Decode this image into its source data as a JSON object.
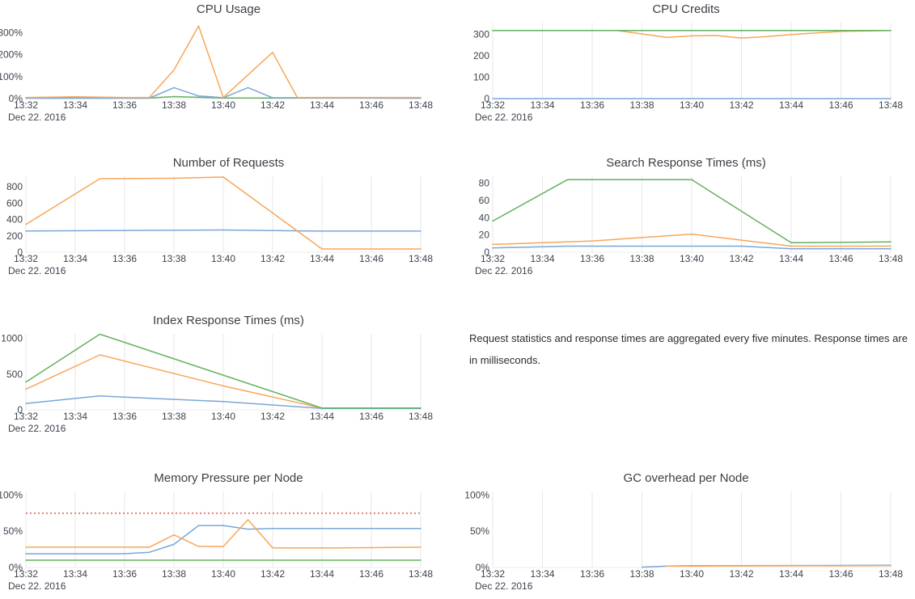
{
  "page": {
    "note": "Request statistics and response times are aggregated every five minutes. Response times are in milliseconds.",
    "background": "#ffffff"
  },
  "x_axis": {
    "tick_labels": [
      "13:32",
      "13:34",
      "13:36",
      "13:38",
      "13:40",
      "13:42",
      "13:44",
      "13:46",
      "13:48"
    ],
    "date_label": "Dec 22. 2016",
    "minutes_domain": [
      0,
      16
    ]
  },
  "palette": {
    "blue": "#7aa6d8",
    "orange": "#f7a658",
    "green": "#62b25e",
    "red": "#ec7d78",
    "grid": "#e7e7e7",
    "zero": "#ececec",
    "title_text": "#3d3f46",
    "tick_text": "#3f434e"
  },
  "chart_data": [
    {
      "id": "cpu-usage",
      "type": "line",
      "title": "CPU Usage",
      "grid": false,
      "ylim": [
        0,
        345
      ],
      "y_ticks": [
        {
          "v": 0,
          "label": "0%"
        },
        {
          "v": 100,
          "label": "100%"
        },
        {
          "v": 200,
          "label": "200%"
        },
        {
          "v": 300,
          "label": "300%"
        }
      ],
      "series": [
        {
          "name": "series-green",
          "color": "green",
          "x": [
            0,
            5,
            6,
            7,
            8,
            16
          ],
          "y": [
            3,
            3,
            9,
            6,
            3,
            3
          ]
        },
        {
          "name": "series-blue",
          "color": "blue",
          "x": [
            0,
            5,
            6,
            7,
            8,
            9,
            10,
            16
          ],
          "y": [
            2,
            2,
            50,
            12,
            4,
            50,
            4,
            2
          ]
        },
        {
          "name": "series-orange",
          "color": "orange",
          "x": [
            0,
            2,
            4,
            5,
            6,
            7,
            8,
            10,
            11,
            16
          ],
          "y": [
            5,
            8,
            5,
            5,
            130,
            330,
            5,
            210,
            5,
            5
          ]
        }
      ]
    },
    {
      "id": "cpu-credits",
      "type": "line",
      "title": "CPU Credits",
      "grid": true,
      "ylim": [
        0,
        355
      ],
      "y_ticks": [
        {
          "v": 0,
          "label": "0"
        },
        {
          "v": 100,
          "label": "100"
        },
        {
          "v": 200,
          "label": "200"
        },
        {
          "v": 300,
          "label": "300"
        }
      ],
      "series": [
        {
          "name": "series-blue",
          "color": "blue",
          "x": [
            0,
            16
          ],
          "y": [
            0,
            0
          ]
        },
        {
          "name": "series-orange",
          "color": "orange",
          "x": [
            0,
            5,
            6,
            7,
            8,
            9,
            10,
            11,
            12,
            13,
            14,
            16
          ],
          "y": [
            318,
            318,
            302,
            286,
            293,
            295,
            283,
            290,
            299,
            307,
            314,
            318
          ]
        },
        {
          "name": "series-green",
          "color": "green",
          "x": [
            0,
            16
          ],
          "y": [
            318,
            318
          ]
        }
      ]
    },
    {
      "id": "number-of-requests",
      "type": "line",
      "title": "Number of Requests",
      "grid": true,
      "ylim": [
        0,
        930
      ],
      "y_ticks": [
        {
          "v": 0,
          "label": "0"
        },
        {
          "v": 200,
          "label": "200"
        },
        {
          "v": 400,
          "label": "400"
        },
        {
          "v": 600,
          "label": "600"
        },
        {
          "v": 800,
          "label": "800"
        }
      ],
      "series": [
        {
          "name": "series-blue",
          "color": "blue",
          "x": [
            0,
            8,
            12,
            16
          ],
          "y": [
            260,
            272,
            258,
            258
          ]
        },
        {
          "name": "series-orange",
          "color": "orange",
          "x": [
            0,
            3,
            6,
            8,
            12,
            16
          ],
          "y": [
            340,
            900,
            905,
            920,
            40,
            40
          ]
        }
      ]
    },
    {
      "id": "search-response-times",
      "type": "line",
      "title": "Search Response Times (ms)",
      "grid": true,
      "ylim": [
        0,
        88
      ],
      "y_ticks": [
        {
          "v": 0,
          "label": "0"
        },
        {
          "v": 20,
          "label": "20"
        },
        {
          "v": 40,
          "label": "40"
        },
        {
          "v": 60,
          "label": "60"
        },
        {
          "v": 80,
          "label": "80"
        }
      ],
      "series": [
        {
          "name": "series-blue",
          "color": "blue",
          "x": [
            0,
            3,
            10,
            12,
            16
          ],
          "y": [
            5,
            7,
            7,
            4,
            4
          ]
        },
        {
          "name": "series-orange",
          "color": "orange",
          "x": [
            0,
            4,
            8,
            12,
            16
          ],
          "y": [
            9,
            13,
            21,
            7,
            7
          ]
        },
        {
          "name": "series-green",
          "color": "green",
          "x": [
            0,
            3,
            8,
            12,
            16
          ],
          "y": [
            36,
            84,
            84,
            11,
            12
          ]
        }
      ]
    },
    {
      "id": "index-response-times",
      "type": "line",
      "title": "Index Response Times (ms)",
      "grid": true,
      "ylim": [
        0,
        1065
      ],
      "y_ticks": [
        {
          "v": 0,
          "label": "0"
        },
        {
          "v": 500,
          "label": "500"
        },
        {
          "v": 1000,
          "label": "1000"
        }
      ],
      "series": [
        {
          "name": "series-blue",
          "color": "blue",
          "x": [
            0,
            3,
            8,
            12,
            16
          ],
          "y": [
            90,
            195,
            115,
            20,
            20
          ]
        },
        {
          "name": "series-orange",
          "color": "orange",
          "x": [
            0,
            3,
            8,
            12,
            16
          ],
          "y": [
            290,
            770,
            335,
            25,
            25
          ]
        },
        {
          "name": "series-green",
          "color": "green",
          "x": [
            0,
            3,
            12,
            16
          ],
          "y": [
            390,
            1060,
            25,
            25
          ]
        }
      ]
    },
    {
      "id": "memory-pressure-per-node",
      "type": "line",
      "title": "Memory Pressure per Node",
      "grid": true,
      "ylim": [
        0,
        105
      ],
      "threshold": {
        "value": 75,
        "style": "dotted",
        "color": "red"
      },
      "y_ticks": [
        {
          "v": 0,
          "label": "0%"
        },
        {
          "v": 50,
          "label": "50%"
        },
        {
          "v": 100,
          "label": "100%"
        }
      ],
      "series": [
        {
          "name": "series-green",
          "color": "green",
          "x": [
            0,
            16
          ],
          "y": [
            10,
            10
          ]
        },
        {
          "name": "series-blue",
          "color": "blue",
          "x": [
            0,
            4,
            5,
            6,
            7,
            8,
            9,
            10,
            16
          ],
          "y": [
            19,
            19,
            21,
            32,
            58,
            58,
            53,
            54,
            54
          ]
        },
        {
          "name": "series-orange",
          "color": "orange",
          "x": [
            0,
            5,
            6,
            7,
            8,
            9,
            10,
            13,
            16
          ],
          "y": [
            28,
            28,
            45,
            29,
            29,
            66,
            27,
            27,
            28
          ]
        }
      ]
    },
    {
      "id": "gc-overhead-per-node",
      "type": "line",
      "title": "GC overhead per Node",
      "grid": true,
      "ylim": [
        0,
        105
      ],
      "y_ticks": [
        {
          "v": 0,
          "label": "0%"
        },
        {
          "v": 50,
          "label": "50%"
        },
        {
          "v": 100,
          "label": "100%"
        }
      ],
      "series": [
        {
          "name": "series-blue",
          "color": "blue",
          "x": [
            6,
            7,
            8,
            16
          ],
          "y": [
            0.5,
            2,
            2.5,
            3
          ]
        },
        {
          "name": "series-orange",
          "color": "orange",
          "x": [
            7,
            8,
            16
          ],
          "y": [
            2,
            2,
            2.5
          ]
        }
      ]
    }
  ]
}
